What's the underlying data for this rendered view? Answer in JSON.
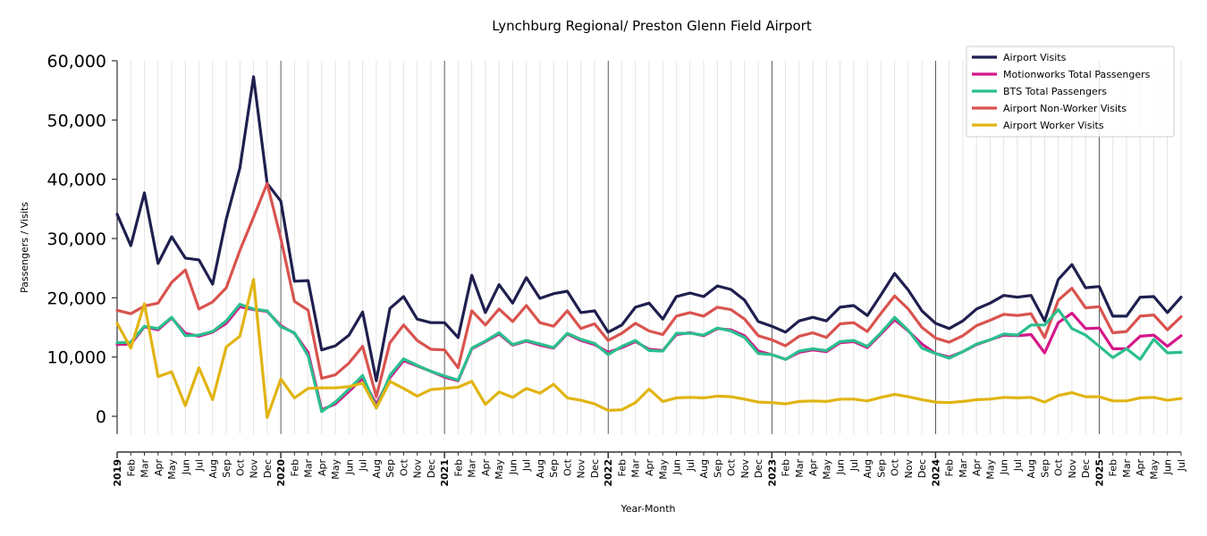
{
  "chart_data": {
    "type": "line",
    "title": "Lynchburg Regional/ Preston Glenn Field Airport",
    "xlabel": "Year-Month",
    "ylabel": "Passengers / Visits",
    "ylim": [
      -3000,
      60000
    ],
    "yticks": [
      0,
      10000,
      20000,
      30000,
      40000,
      50000,
      60000
    ],
    "ytick_labels": [
      "0",
      "10,000",
      "20,000",
      "30,000",
      "40,000",
      "50,000",
      "60,000"
    ],
    "legend_position": "top-right",
    "grid": "vertical monthly",
    "x": [
      "2019",
      "Feb",
      "Mar",
      "Apr",
      "May",
      "Jun",
      "Jul",
      "Aug",
      "Sep",
      "Oct",
      "Nov",
      "Dec",
      "2020",
      "Feb",
      "Mar",
      "Apr",
      "May",
      "Jun",
      "Jul",
      "Aug",
      "Sep",
      "Oct",
      "Nov",
      "Dec",
      "2021",
      "Feb",
      "Mar",
      "Apr",
      "May",
      "Jun",
      "Jul",
      "Aug",
      "Sep",
      "Oct",
      "Nov",
      "Dec",
      "2022",
      "Feb",
      "Mar",
      "Apr",
      "May",
      "Jun",
      "Jul",
      "Aug",
      "Sep",
      "Oct",
      "Nov",
      "Dec",
      "2023",
      "Feb",
      "Mar",
      "Apr",
      "May",
      "Jun",
      "Jul",
      "Aug",
      "Sep",
      "Oct",
      "Nov",
      "Dec",
      "2024",
      "Feb",
      "Mar",
      "Apr",
      "May",
      "Jun",
      "Jul",
      "Aug",
      "Sep",
      "Oct",
      "Nov",
      "Dec",
      "2025",
      "Feb",
      "Mar",
      "Apr",
      "May",
      "Jun",
      "Jul"
    ],
    "series": [
      {
        "name": "Airport Visits",
        "color": "#1f1f4f",
        "values": [
          34100,
          28800,
          37700,
          25800,
          30300,
          26700,
          26400,
          22300,
          33300,
          41900,
          57300,
          39300,
          36300,
          22800,
          22900,
          11200,
          11900,
          13700,
          17600,
          6000,
          18200,
          20200,
          16400,
          15800,
          15800,
          13300,
          23800,
          17500,
          22200,
          19100,
          23400,
          19900,
          20700,
          21100,
          17500,
          17800,
          14200,
          15400,
          18400,
          19100,
          16400,
          20200,
          20800,
          20200,
          22000,
          21400,
          19600,
          16000,
          15200,
          14200,
          16100,
          16700,
          16100,
          18400,
          18700,
          17000,
          20500,
          24100,
          21300,
          17800,
          15700,
          14800,
          16100,
          18100,
          19100,
          20400,
          20100,
          20400,
          16100,
          23100,
          25600,
          21700,
          21900,
          16900,
          16900,
          20100,
          20200,
          17500,
          20100
        ]
      },
      {
        "name": "Motionworks Total Passengers",
        "color": "#d4178a",
        "values": [
          12100,
          12200,
          15100,
          14600,
          16600,
          14000,
          13500,
          14200,
          15700,
          18500,
          18000,
          17700,
          15300,
          14000,
          10800,
          1100,
          2100,
          4200,
          6400,
          2000,
          6500,
          9400,
          8500,
          7600,
          6600,
          6000,
          11400,
          12600,
          13900,
          12000,
          12700,
          12000,
          11500,
          13900,
          12800,
          12100,
          10800,
          11600,
          12600,
          11300,
          11100,
          13800,
          14100,
          13600,
          14800,
          14600,
          13600,
          11000,
          10400,
          9600,
          10800,
          11200,
          10900,
          12400,
          12600,
          11600,
          13900,
          16300,
          14400,
          12200,
          10600,
          10000,
          10900,
          12100,
          12900,
          13700,
          13600,
          13800,
          10700,
          15800,
          17400,
          14800,
          14900,
          11400,
          11400,
          13500,
          13700,
          11800,
          13600
        ]
      },
      {
        "name": "BTS Total Passengers",
        "color": "#2bbf8e",
        "values": [
          12400,
          12500,
          15200,
          14800,
          16700,
          13600,
          13700,
          14300,
          16100,
          18900,
          18100,
          17800,
          15100,
          14100,
          10200,
          800,
          2400,
          4600,
          6900,
          1400,
          6900,
          9700,
          8600,
          7600,
          6800,
          6100,
          11500,
          12700,
          14100,
          12100,
          12800,
          12200,
          11600,
          14000,
          13000,
          12300,
          10400,
          11800,
          12800,
          11100,
          11000,
          14000,
          14000,
          13700,
          14900,
          14400,
          13300,
          10600,
          10400,
          9600,
          11000,
          11400,
          11100,
          12600,
          12800,
          11800,
          14100,
          16700,
          14500,
          11500,
          10600,
          9800,
          10900,
          12200,
          12900,
          13900,
          13700,
          15400,
          15400,
          18000,
          14800,
          13700,
          11800,
          9900,
          11400,
          9600,
          13000,
          10700,
          10800
        ]
      },
      {
        "name": "Airport Non-Worker Visits",
        "color": "#d9534f",
        "values": [
          17900,
          17300,
          18600,
          19100,
          22600,
          24700,
          18100,
          19300,
          21700,
          28000,
          33600,
          39300,
          30000,
          19400,
          17900,
          6400,
          7000,
          9000,
          11800,
          3300,
          12400,
          15400,
          12800,
          11300,
          11200,
          8200,
          17800,
          15400,
          18100,
          16000,
          18700,
          15800,
          15200,
          17800,
          14800,
          15600,
          12800,
          14000,
          15700,
          14400,
          13800,
          16900,
          17500,
          16900,
          18400,
          18000,
          16400,
          13600,
          12900,
          11900,
          13500,
          14100,
          13300,
          15600,
          15800,
          14300,
          17400,
          20300,
          18100,
          15000,
          13200,
          12500,
          13600,
          15300,
          16200,
          17200,
          17000,
          17300,
          13300,
          19600,
          21600,
          18300,
          18500,
          14100,
          14300,
          16900,
          17100,
          14600,
          16800
        ]
      },
      {
        "name": "Airport Worker Visits",
        "color": "#e1b412",
        "values": [
          15700,
          11500,
          19000,
          6700,
          7500,
          1800,
          8200,
          2800,
          11700,
          13500,
          23100,
          -200,
          6300,
          3100,
          4700,
          4800,
          4800,
          5000,
          5600,
          1400,
          5900,
          4700,
          3400,
          4500,
          4700,
          4900,
          5900,
          2000,
          4100,
          3200,
          4700,
          3900,
          5400,
          3100,
          2700,
          2100,
          1000,
          1100,
          2300,
          4600,
          2500,
          3100,
          3200,
          3100,
          3400,
          3300,
          2900,
          2400,
          2300,
          2100,
          2500,
          2600,
          2500,
          2900,
          2900,
          2600,
          3200,
          3700,
          3300,
          2800,
          2400,
          2300,
          2500,
          2800,
          2900,
          3200,
          3100,
          3200,
          2400,
          3500,
          4000,
          3300,
          3300,
          2600,
          2600,
          3100,
          3200,
          2700,
          3000
        ]
      }
    ]
  }
}
